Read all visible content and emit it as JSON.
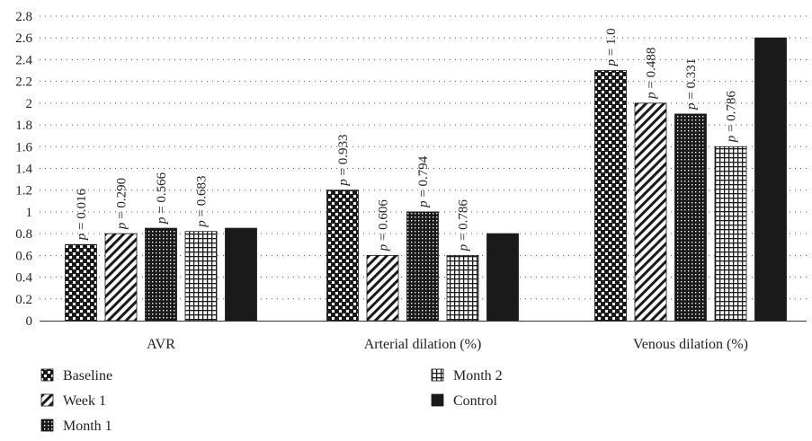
{
  "chart_data": {
    "type": "bar",
    "categories": [
      "AVR",
      "Arterial dilation (%)",
      "Venous dilation (%)"
    ],
    "ylim": [
      0,
      2.8
    ],
    "yticks": [
      "0",
      "0.2",
      "0.4",
      "0.6",
      "0.8",
      "1",
      "1.2",
      "1.4",
      "1.6",
      "1.8",
      "2",
      "2.2",
      "2.4",
      "2.6",
      "2.8"
    ],
    "grid": "horizontal-dotted",
    "legend_position": "bottom",
    "series": [
      {
        "name": "Baseline",
        "pattern": "checker",
        "values": [
          0.7,
          1.2,
          2.3
        ],
        "p_labels": [
          "p = 0.016",
          "p = 0.933",
          "p = 1.0"
        ]
      },
      {
        "name": "Week 1",
        "pattern": "diagonal",
        "values": [
          0.8,
          0.6,
          2.0
        ],
        "p_labels": [
          "p = 0.290",
          "p = 0.606",
          "p = 0.488"
        ]
      },
      {
        "name": "Month 1",
        "pattern": "dots",
        "values": [
          0.85,
          1.0,
          1.9
        ],
        "p_labels": [
          "p = 0.566",
          "p = 0.794",
          "p = 0.331"
        ]
      },
      {
        "name": "Month 2",
        "pattern": "grid",
        "values": [
          0.82,
          0.6,
          1.6
        ],
        "p_labels": [
          "p = 0.683",
          "p = 0.786",
          "p = 0.786"
        ]
      },
      {
        "name": "Control",
        "pattern": "solid",
        "values": [
          0.85,
          0.8,
          2.6
        ],
        "p_labels": [
          "",
          "",
          ""
        ]
      }
    ],
    "colors": {
      "bar": "#1a1a1a",
      "background": "#ffffff",
      "grid": "#555555"
    }
  }
}
